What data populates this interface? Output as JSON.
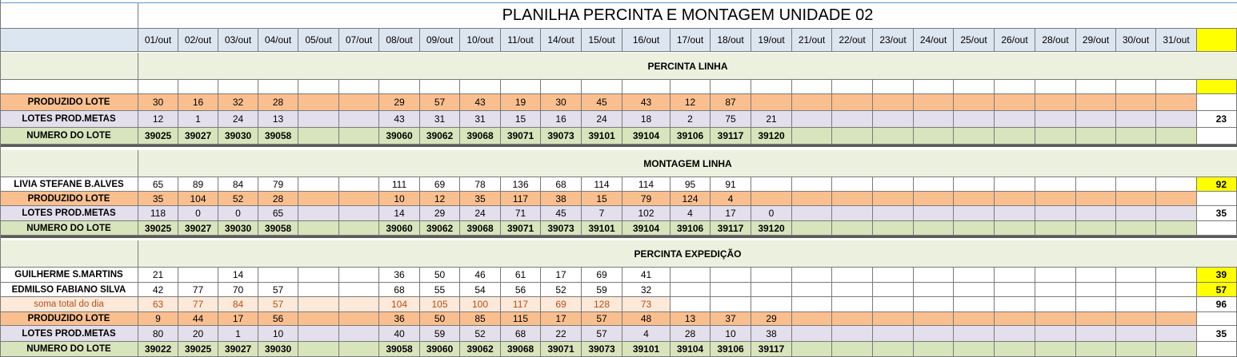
{
  "title": "PLANILHA PERCINTA E MONTAGEM UNIDADE 02",
  "dates": [
    "01/out",
    "02/out",
    "03/out",
    "04/out",
    "05/out",
    "07/out",
    "08/out",
    "09/out",
    "10/out",
    "11/out",
    "14/out",
    "15/out",
    "16/out",
    "17/out",
    "18/out",
    "19/out",
    "21/out",
    "22/out",
    "23/out",
    "24/out",
    "25/out",
    "26/out",
    "28/out",
    "29/out",
    "30/out",
    "31/out",
    ""
  ],
  "colors": {
    "header_blue": "#dce6f1",
    "orange": "#fabf8f",
    "lavender": "#e4dfec",
    "green": "#d8e4bc",
    "peach": "#fde9d9",
    "yellow": "#ffff00",
    "section_green": "#ebf1de"
  },
  "sections": [
    {
      "title": "PERCINTA LINHA",
      "rows": [
        {
          "label": "",
          "style": "blank",
          "values": [
            "",
            "",
            "",
            "",
            "",
            "",
            "",
            "",
            "",
            "",
            "",
            "",
            "",
            "",
            "",
            "",
            "",
            "",
            "",
            "",
            "",
            "",
            "",
            "",
            "",
            "",
            ""
          ],
          "yellow_total": true
        },
        {
          "label": "PRODUZIDO LOTE",
          "style": "orange",
          "values": [
            "30",
            "16",
            "32",
            "28",
            "",
            "",
            "29",
            "57",
            "43",
            "19",
            "30",
            "45",
            "43",
            "12",
            "87",
            "",
            "",
            "",
            "",
            "",
            "",
            "",
            "",
            "",
            "",
            "",
            ""
          ]
        },
        {
          "label": "LOTES PROD.METAS",
          "style": "lavender",
          "values": [
            "12",
            "1",
            "24",
            "13",
            "",
            "",
            "43",
            "31",
            "31",
            "15",
            "16",
            "24",
            "18",
            "2",
            "75",
            "21",
            "",
            "",
            "",
            "",
            "",
            "",
            "",
            "",
            "",
            "",
            "23"
          ]
        },
        {
          "label": "NUMERO DO LOTE",
          "style": "green",
          "values": [
            "39025",
            "39027",
            "39030",
            "39058",
            "",
            "",
            "39060",
            "39062",
            "39068",
            "39071",
            "39073",
            "39101",
            "39104",
            "39106",
            "39117",
            "39120",
            "",
            "",
            "",
            "",
            "",
            "",
            "",
            "",
            "",
            "",
            ""
          ]
        }
      ]
    },
    {
      "title": "MONTAGEM LINHA",
      "rows": [
        {
          "label": "LIVIA STEFANE B.ALVES",
          "style": "white",
          "values": [
            "65",
            "89",
            "84",
            "79",
            "",
            "",
            "111",
            "69",
            "78",
            "136",
            "68",
            "114",
            "114",
            "95",
            "91",
            "",
            "",
            "",
            "",
            "",
            "",
            "",
            "",
            "",
            "",
            "",
            "92"
          ],
          "yellow_total": true
        },
        {
          "label": "PRODUZIDO LOTE",
          "style": "orange",
          "values": [
            "35",
            "104",
            "52",
            "28",
            "",
            "",
            "10",
            "12",
            "35",
            "117",
            "38",
            "15",
            "79",
            "124",
            "4",
            "",
            "",
            "",
            "",
            "",
            "",
            "",
            "",
            "",
            "",
            "",
            ""
          ]
        },
        {
          "label": "LOTES PROD.METAS",
          "style": "lavender",
          "values": [
            "118",
            "0",
            "0",
            "65",
            "",
            "",
            "14",
            "29",
            "24",
            "71",
            "45",
            "7",
            "102",
            "4",
            "17",
            "0",
            "",
            "",
            "",
            "",
            "",
            "",
            "",
            "",
            "",
            "",
            "35"
          ]
        },
        {
          "label": "NUMERO DO LOTE",
          "style": "green",
          "values": [
            "39025",
            "39027",
            "39030",
            "39058",
            "",
            "",
            "39060",
            "39062",
            "39068",
            "39071",
            "39073",
            "39101",
            "39104",
            "39106",
            "39117",
            "39120",
            "",
            "",
            "",
            "",
            "",
            "",
            "",
            "",
            "",
            "",
            ""
          ]
        }
      ]
    },
    {
      "title": "PERCINTA EXPEDIÇÃO",
      "rows": [
        {
          "label": "GUILHERME S.MARTINS",
          "style": "white",
          "values": [
            "21",
            "",
            "14",
            "",
            "",
            "",
            "36",
            "50",
            "46",
            "61",
            "17",
            "69",
            "41",
            "",
            "",
            "",
            "",
            "",
            "",
            "",
            "",
            "",
            "",
            "",
            "",
            "",
            "39"
          ],
          "yellow_total": true
        },
        {
          "label": "EDMILSO FABIANO SILVA",
          "style": "white",
          "values": [
            "42",
            "77",
            "70",
            "57",
            "",
            "",
            "68",
            "55",
            "54",
            "56",
            "52",
            "59",
            "32",
            "",
            "",
            "",
            "",
            "",
            "",
            "",
            "",
            "",
            "",
            "",
            "",
            "",
            "57"
          ],
          "yellow_total": true
        },
        {
          "label": "soma total  do dia",
          "style": "peach",
          "values": [
            "63",
            "77",
            "84",
            "57",
            "",
            "",
            "104",
            "105",
            "100",
            "117",
            "69",
            "128",
            "73",
            "",
            "",
            "",
            "",
            "",
            "",
            "",
            "",
            "",
            "",
            "",
            "",
            "",
            "96"
          ]
        },
        {
          "label": "PRODUZIDO LOTE",
          "style": "orange",
          "values": [
            "9",
            "44",
            "17",
            "56",
            "",
            "",
            "36",
            "50",
            "85",
            "115",
            "17",
            "57",
            "48",
            "13",
            "37",
            "29",
            "",
            "",
            "",
            "",
            "",
            "",
            "",
            "",
            "",
            "",
            ""
          ]
        },
        {
          "label": "LOTES PROD.METAS",
          "style": "lavender",
          "values": [
            "80",
            "20",
            "1",
            "10",
            "",
            "",
            "40",
            "59",
            "52",
            "68",
            "22",
            "57",
            "4",
            "28",
            "10",
            "38",
            "",
            "",
            "",
            "",
            "",
            "",
            "",
            "",
            "",
            "",
            "35"
          ]
        },
        {
          "label": "NUMERO DO LOTE",
          "style": "green",
          "values": [
            "39022",
            "39025",
            "39027",
            "39030",
            "",
            "",
            "39058",
            "39060",
            "39062",
            "39068",
            "39071",
            "39073",
            "39101",
            "39104",
            "39106",
            "39117",
            "",
            "",
            "",
            "",
            "",
            "",
            "",
            "",
            "",
            "",
            ""
          ]
        }
      ]
    }
  ]
}
